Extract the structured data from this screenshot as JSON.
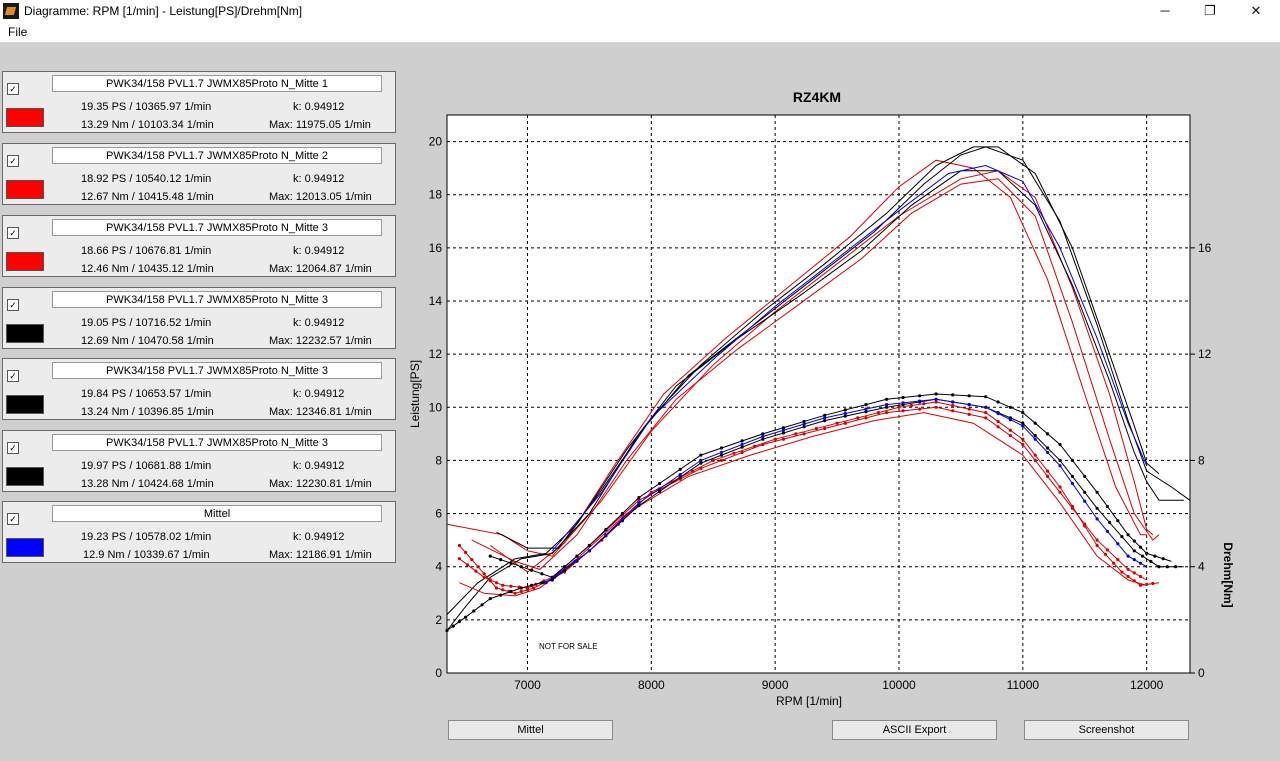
{
  "window": {
    "title": "Diagramme: RPM [1/min] - Leistung[PS]/Drehm[Nm]",
    "minimize": "─",
    "maximize": "❐",
    "close": "✕"
  },
  "menu": {
    "file": "File"
  },
  "panels": [
    {
      "checked": "✓",
      "name": "PWK34/158 PVL1.7 JWMX85Proto N_Mitte 1",
      "color": "#ff0000",
      "ps": "19.35 PS / 10365.97 1/min",
      "k": "k: 0.94912",
      "nm": "13.29 Nm / 10103.34 1/min",
      "max": "Max: 11975.05 1/min"
    },
    {
      "checked": "✓",
      "name": "PWK34/158 PVL1.7 JWMX85Proto N_Mitte 2",
      "color": "#ff0000",
      "ps": "18.92 PS / 10540.12 1/min",
      "k": "k: 0.94912",
      "nm": "12.67 Nm / 10415.48 1/min",
      "max": "Max: 12013.05 1/min"
    },
    {
      "checked": "✓",
      "name": "PWK34/158 PVL1.7 JWMX85Proto N_Mitte 3",
      "color": "#ff0000",
      "ps": "18.66 PS / 10676.81 1/min",
      "k": "k: 0.94912",
      "nm": "12.46 Nm / 10435.12 1/min",
      "max": "Max: 12064.87 1/min"
    },
    {
      "checked": "✓",
      "name": "PWK34/158 PVL1.7 JWMX85Proto N_Mitte 3",
      "color": "#000000",
      "ps": "19.05 PS / 10716.52 1/min",
      "k": "k: 0.94912",
      "nm": "12.69 Nm / 10470.58 1/min",
      "max": "Max: 12232.57 1/min"
    },
    {
      "checked": "✓",
      "name": "PWK34/158 PVL1.7 JWMX85Proto N_Mitte 3",
      "color": "#000000",
      "ps": "19.84 PS / 10653.57 1/min",
      "k": "k: 0.94912",
      "nm": "13.24 Nm / 10396.85 1/min",
      "max": "Max: 12346.81 1/min"
    },
    {
      "checked": "✓",
      "name": "PWK34/158 PVL1.7 JWMX85Proto N_Mitte 3",
      "color": "#000000",
      "ps": "19.97 PS / 10681.88 1/min",
      "k": "k: 0.94912",
      "nm": "13.28 Nm / 10424.68 1/min",
      "max": "Max: 12230.81 1/min"
    },
    {
      "checked": "✓",
      "name": "Mittel",
      "color": "#0000ff",
      "ps": "19.23 PS / 10578.02 1/min",
      "k": "k: 0.94912",
      "nm": "12.9 Nm / 10339.67 1/min",
      "max": "Max: 12186.91 1/min"
    }
  ],
  "buttons": {
    "mittel": "Mittel",
    "ascii": "ASCII Export",
    "screenshot": "Screenshot"
  },
  "chart_data": {
    "type": "line",
    "title": "RZ4KM",
    "xlabel": "RPM [1/min]",
    "ylabel": "Leistung[PS]",
    "y2label": "Drehm[Nm]",
    "xlim": [
      6350,
      12350
    ],
    "ylim": [
      0,
      21
    ],
    "y2lim": [
      0,
      21
    ],
    "xticks": [
      7000,
      8000,
      9000,
      10000,
      11000,
      12000
    ],
    "yticks": [
      0,
      2,
      4,
      6,
      8,
      10,
      12,
      14,
      16,
      18,
      20
    ],
    "y2ticks": [
      0,
      4,
      8,
      12,
      16
    ],
    "grid": true,
    "annotation": "NOT FOR SALE",
    "power_series": [
      {
        "color": "#dd0000",
        "points": [
          [
            6350,
            5.6
          ],
          [
            6800,
            5.2
          ],
          [
            7000,
            4.6
          ],
          [
            7200,
            4.4
          ],
          [
            7600,
            6.5
          ],
          [
            8000,
            9.1
          ],
          [
            8500,
            11.6
          ],
          [
            9000,
            13.6
          ],
          [
            9500,
            15.4
          ],
          [
            10000,
            17.2
          ],
          [
            10500,
            18.6
          ],
          [
            10800,
            18.9
          ],
          [
            11100,
            17.9
          ],
          [
            11400,
            14.5
          ],
          [
            11700,
            10.5
          ],
          [
            11900,
            7.2
          ],
          [
            12000,
            5.4
          ],
          [
            12050,
            5.2
          ]
        ]
      },
      {
        "color": "#dd0000",
        "points": [
          [
            6550,
            5.0
          ],
          [
            6900,
            4.2
          ],
          [
            7100,
            3.9
          ],
          [
            7400,
            5.2
          ],
          [
            7800,
            8.0
          ],
          [
            8200,
            10.3
          ],
          [
            8700,
            12.2
          ],
          [
            9200,
            13.9
          ],
          [
            9700,
            15.6
          ],
          [
            10100,
            17.3
          ],
          [
            10500,
            18.4
          ],
          [
            10800,
            18.6
          ],
          [
            11100,
            17.2
          ],
          [
            11400,
            13.2
          ],
          [
            11700,
            8.8
          ],
          [
            11900,
            6.0
          ],
          [
            12050,
            5.0
          ],
          [
            12100,
            5.2
          ]
        ]
      },
      {
        "color": "#dd0000",
        "points": [
          [
            6700,
            4.8
          ],
          [
            7000,
            3.8
          ],
          [
            7300,
            4.9
          ],
          [
            7700,
            7.8
          ],
          [
            8100,
            10.5
          ],
          [
            8600,
            12.6
          ],
          [
            9100,
            14.5
          ],
          [
            9600,
            16.4
          ],
          [
            10000,
            18.3
          ],
          [
            10300,
            19.3
          ],
          [
            10600,
            19.0
          ],
          [
            10900,
            17.9
          ],
          [
            11200,
            14.8
          ],
          [
            11500,
            10.5
          ],
          [
            11750,
            7.0
          ],
          [
            11950,
            5.2
          ],
          [
            12000,
            5.2
          ]
        ]
      },
      {
        "color": "#000000",
        "points": [
          [
            6350,
            2.2
          ],
          [
            6600,
            3.4
          ],
          [
            6900,
            4.3
          ],
          [
            7150,
            4.5
          ],
          [
            7400,
            5.6
          ],
          [
            7800,
            8.4
          ],
          [
            8200,
            10.8
          ],
          [
            8700,
            12.6
          ],
          [
            9200,
            14.2
          ],
          [
            9700,
            15.9
          ],
          [
            10100,
            17.6
          ],
          [
            10500,
            18.9
          ],
          [
            10800,
            18.9
          ],
          [
            11100,
            17.6
          ],
          [
            11400,
            14.6
          ],
          [
            11700,
            11.0
          ],
          [
            11900,
            8.3
          ],
          [
            12000,
            7.2
          ],
          [
            12100,
            6.5
          ],
          [
            12300,
            6.5
          ]
        ]
      },
      {
        "color": "#000000",
        "points": [
          [
            6350,
            1.6
          ],
          [
            6500,
            2.5
          ],
          [
            6700,
            3.6
          ],
          [
            6950,
            4.3
          ],
          [
            7200,
            4.5
          ],
          [
            7500,
            6.0
          ],
          [
            7900,
            9.0
          ],
          [
            8300,
            11.2
          ],
          [
            8800,
            13.0
          ],
          [
            9300,
            14.8
          ],
          [
            9800,
            16.6
          ],
          [
            10200,
            18.4
          ],
          [
            10500,
            19.5
          ],
          [
            10700,
            19.8
          ],
          [
            11000,
            19.3
          ],
          [
            11300,
            17.0
          ],
          [
            11600,
            13.1
          ],
          [
            11850,
            9.5
          ],
          [
            12000,
            7.6
          ],
          [
            12200,
            7.0
          ],
          [
            12350,
            6.5
          ]
        ]
      },
      {
        "color": "#000000",
        "points": [
          [
            6750,
            5.3
          ],
          [
            7000,
            4.7
          ],
          [
            7250,
            4.7
          ],
          [
            7600,
            6.9
          ],
          [
            8000,
            9.6
          ],
          [
            8400,
            11.6
          ],
          [
            8900,
            13.6
          ],
          [
            9400,
            15.4
          ],
          [
            9900,
            17.3
          ],
          [
            10300,
            19.1
          ],
          [
            10600,
            19.8
          ],
          [
            10800,
            19.8
          ],
          [
            11100,
            18.8
          ],
          [
            11400,
            16.0
          ],
          [
            11700,
            12.0
          ],
          [
            11900,
            9.3
          ],
          [
            12000,
            7.9
          ],
          [
            12100,
            7.5
          ]
        ]
      },
      {
        "color": "#0000ff",
        "points": [
          [
            7200,
            4.6
          ],
          [
            7600,
            6.8
          ],
          [
            8000,
            9.6
          ],
          [
            8500,
            11.8
          ],
          [
            9000,
            13.8
          ],
          [
            9500,
            15.6
          ],
          [
            10000,
            17.4
          ],
          [
            10400,
            18.8
          ],
          [
            10700,
            19.1
          ],
          [
            11000,
            18.5
          ],
          [
            11300,
            16.0
          ],
          [
            11600,
            12.6
          ],
          [
            11850,
            9.4
          ],
          [
            12000,
            7.8
          ]
        ]
      }
    ],
    "torque_series": [
      {
        "color": "#dd0000",
        "markers": true,
        "points": [
          [
            6450,
            4.8
          ],
          [
            6600,
            4.0
          ],
          [
            6750,
            3.2
          ],
          [
            6900,
            3.0
          ],
          [
            7050,
            3.2
          ],
          [
            7300,
            3.8
          ],
          [
            7600,
            5.0
          ],
          [
            8000,
            6.8
          ],
          [
            8500,
            8.0
          ],
          [
            9000,
            8.8
          ],
          [
            9500,
            9.4
          ],
          [
            10000,
            10.0
          ],
          [
            10300,
            10.2
          ],
          [
            10700,
            9.8
          ],
          [
            11000,
            8.8
          ],
          [
            11300,
            7.0
          ],
          [
            11600,
            4.8
          ],
          [
            11800,
            3.8
          ],
          [
            11950,
            3.3
          ],
          [
            12100,
            3.4
          ]
        ]
      },
      {
        "color": "#dd0000",
        "markers": true,
        "points": [
          [
            6450,
            4.3
          ],
          [
            6650,
            3.6
          ],
          [
            6800,
            3.3
          ],
          [
            7000,
            3.2
          ],
          [
            7200,
            3.6
          ],
          [
            7500,
            4.8
          ],
          [
            7900,
            6.5
          ],
          [
            8400,
            7.7
          ],
          [
            8900,
            8.6
          ],
          [
            9400,
            9.2
          ],
          [
            9900,
            9.8
          ],
          [
            10300,
            10.0
          ],
          [
            10700,
            9.6
          ],
          [
            11000,
            8.6
          ],
          [
            11300,
            6.8
          ],
          [
            11600,
            5.0
          ],
          [
            11850,
            3.9
          ],
          [
            12000,
            3.5
          ]
        ]
      },
      {
        "color": "#dd0000",
        "markers": false,
        "points": [
          [
            6450,
            3.4
          ],
          [
            6650,
            3.0
          ],
          [
            6900,
            2.9
          ],
          [
            7100,
            3.2
          ],
          [
            7400,
            4.3
          ],
          [
            7800,
            6.0
          ],
          [
            8300,
            7.4
          ],
          [
            8800,
            8.2
          ],
          [
            9300,
            8.9
          ],
          [
            9800,
            9.5
          ],
          [
            10200,
            9.8
          ],
          [
            10600,
            9.4
          ],
          [
            11000,
            8.2
          ],
          [
            11300,
            6.4
          ],
          [
            11600,
            4.4
          ],
          [
            11850,
            3.5
          ],
          [
            12000,
            3.3
          ]
        ]
      },
      {
        "color": "#000000",
        "markers": true,
        "points": [
          [
            6350,
            1.6
          ],
          [
            6500,
            2.1
          ],
          [
            6700,
            2.8
          ],
          [
            6950,
            3.2
          ],
          [
            7200,
            3.5
          ],
          [
            7500,
            4.6
          ],
          [
            7900,
            6.3
          ],
          [
            8400,
            7.9
          ],
          [
            8900,
            8.8
          ],
          [
            9400,
            9.5
          ],
          [
            9900,
            10.0
          ],
          [
            10300,
            10.3
          ],
          [
            10700,
            10.0
          ],
          [
            11000,
            9.4
          ],
          [
            11300,
            8.0
          ],
          [
            11600,
            6.2
          ],
          [
            11900,
            4.6
          ],
          [
            12100,
            4.0
          ],
          [
            12300,
            4.0
          ]
        ]
      },
      {
        "color": "#000000",
        "markers": true,
        "points": [
          [
            6700,
            4.4
          ],
          [
            6950,
            4.0
          ],
          [
            7200,
            3.6
          ],
          [
            7500,
            4.8
          ],
          [
            7900,
            6.6
          ],
          [
            8400,
            8.2
          ],
          [
            8900,
            9.0
          ],
          [
            9400,
            9.7
          ],
          [
            9900,
            10.3
          ],
          [
            10300,
            10.5
          ],
          [
            10700,
            10.4
          ],
          [
            11000,
            9.8
          ],
          [
            11300,
            8.6
          ],
          [
            11600,
            6.8
          ],
          [
            11850,
            5.2
          ],
          [
            12000,
            4.5
          ],
          [
            12200,
            4.2
          ]
        ]
      },
      {
        "color": "#0000ff",
        "markers": true,
        "points": [
          [
            7150,
            3.4
          ],
          [
            7500,
            4.6
          ],
          [
            7900,
            6.4
          ],
          [
            8400,
            8.0
          ],
          [
            8900,
            8.9
          ],
          [
            9400,
            9.6
          ],
          [
            9900,
            10.1
          ],
          [
            10300,
            10.3
          ],
          [
            10700,
            10.0
          ],
          [
            11000,
            9.3
          ],
          [
            11300,
            7.8
          ],
          [
            11600,
            5.8
          ],
          [
            11850,
            4.4
          ],
          [
            12000,
            4.0
          ]
        ]
      }
    ]
  }
}
